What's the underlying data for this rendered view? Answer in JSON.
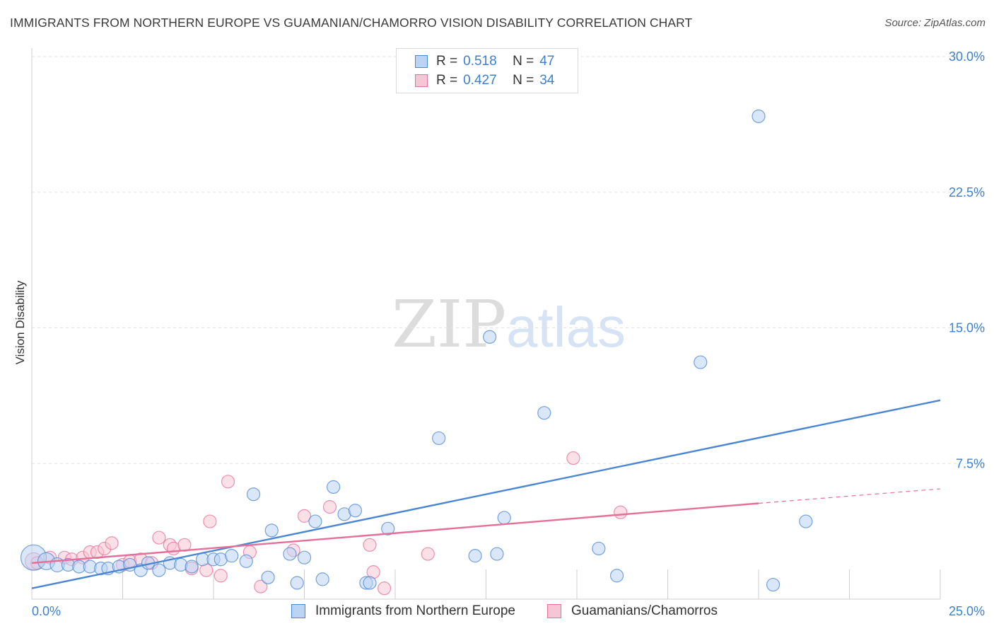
{
  "header": {
    "title": "IMMIGRANTS FROM NORTHERN EUROPE VS GUAMANIAN/CHAMORRO VISION DISABILITY CORRELATION CHART",
    "source": "Source: ZipAtlas.com"
  },
  "watermark": {
    "zip": "ZIP",
    "atlas": "atlas"
  },
  "colors": {
    "blue": "#4a86d4",
    "blue_fill": "#bcd4f3",
    "pink": "#e56f98",
    "pink_fill": "#f7c6d6",
    "tick": "#3d7fd0",
    "grid": "#e3e3e3"
  },
  "legend": {
    "rows": [
      {
        "r_label": "R =",
        "r_value": "0.518",
        "n_label": "N =",
        "n_value": "47"
      },
      {
        "r_label": "R =",
        "r_value": "0.427",
        "n_label": "N =",
        "n_value": "34"
      }
    ]
  },
  "bottom_legend": {
    "series1": "Immigrants from Northern Europe",
    "series2": "Guamanians/Chamorros"
  },
  "chart_data": {
    "type": "scatter",
    "title": "IMMIGRANTS FROM NORTHERN EUROPE VS GUAMANIAN/CHAMORRO VISION DISABILITY CORRELATION CHART",
    "xlabel": "",
    "ylabel": "Vision Disability",
    "xlim": [
      0,
      25
    ],
    "ylim": [
      0,
      30
    ],
    "x_tick_labels": [
      "0.0%",
      "25.0%"
    ],
    "y_ticks": [
      7.5,
      15.0,
      22.5,
      30.0
    ],
    "y_tick_labels": [
      "7.5%",
      "15.0%",
      "22.5%",
      "30.0%"
    ],
    "grid": true,
    "series": [
      {
        "name": "Immigrants from Northern Europe",
        "color": "#4a86d4",
        "R": 0.518,
        "N": 47,
        "trend": {
          "x": [
            0,
            25
          ],
          "y": [
            0.6,
            11.0
          ]
        },
        "points": [
          [
            0.05,
            2.3,
            18
          ],
          [
            0.4,
            2.1,
            12
          ],
          [
            0.7,
            1.9,
            10
          ],
          [
            1.0,
            1.9,
            9
          ],
          [
            1.3,
            1.8,
            9
          ],
          [
            1.6,
            1.8,
            9
          ],
          [
            1.9,
            1.7,
            9
          ],
          [
            2.1,
            1.7,
            9
          ],
          [
            2.4,
            1.8,
            9
          ],
          [
            2.7,
            1.9,
            9
          ],
          [
            3.0,
            1.6,
            9
          ],
          [
            3.2,
            2.0,
            9
          ],
          [
            3.5,
            1.6,
            9
          ],
          [
            3.8,
            2.0,
            9
          ],
          [
            4.1,
            1.9,
            9
          ],
          [
            4.4,
            1.8,
            9
          ],
          [
            4.7,
            2.2,
            9
          ],
          [
            5.0,
            2.2,
            9
          ],
          [
            5.2,
            2.2,
            9
          ],
          [
            5.5,
            2.4,
            9
          ],
          [
            5.9,
            2.1,
            9
          ],
          [
            6.1,
            5.8,
            9
          ],
          [
            6.5,
            1.2,
            9
          ],
          [
            6.6,
            3.8,
            9
          ],
          [
            7.1,
            2.5,
            9
          ],
          [
            7.3,
            0.9,
            9
          ],
          [
            7.5,
            2.3,
            9
          ],
          [
            7.8,
            4.3,
            9
          ],
          [
            8.0,
            1.1,
            9
          ],
          [
            8.3,
            6.2,
            9
          ],
          [
            8.6,
            4.7,
            9
          ],
          [
            8.9,
            4.9,
            9
          ],
          [
            9.2,
            0.9,
            9
          ],
          [
            9.3,
            0.9,
            9
          ],
          [
            9.8,
            3.9,
            9
          ],
          [
            11.2,
            8.9,
            9
          ],
          [
            12.2,
            2.4,
            9
          ],
          [
            12.6,
            14.5,
            9
          ],
          [
            12.8,
            2.5,
            9
          ],
          [
            13.0,
            4.5,
            9
          ],
          [
            14.1,
            10.3,
            9
          ],
          [
            15.6,
            2.8,
            9
          ],
          [
            16.1,
            1.3,
            9
          ],
          [
            18.4,
            13.1,
            9
          ],
          [
            20.0,
            26.7,
            9
          ],
          [
            20.4,
            0.8,
            9
          ],
          [
            21.3,
            4.3,
            9
          ]
        ]
      },
      {
        "name": "Guamanians/Chamorros",
        "color": "#e56f98",
        "R": 0.427,
        "N": 34,
        "trend": {
          "x": [
            0,
            20
          ],
          "y": [
            2.0,
            5.3
          ]
        },
        "trend_dashed": {
          "x": [
            20,
            25
          ],
          "y": [
            5.3,
            6.1
          ]
        },
        "points": [
          [
            0.05,
            2.1,
            12
          ],
          [
            0.5,
            2.3,
            9
          ],
          [
            0.9,
            2.3,
            9
          ],
          [
            1.1,
            2.2,
            9
          ],
          [
            1.4,
            2.3,
            9
          ],
          [
            1.6,
            2.6,
            9
          ],
          [
            1.8,
            2.6,
            9
          ],
          [
            2.0,
            2.8,
            9
          ],
          [
            2.2,
            3.1,
            9
          ],
          [
            2.5,
            1.9,
            9
          ],
          [
            2.7,
            2.1,
            9
          ],
          [
            3.0,
            2.2,
            9
          ],
          [
            3.3,
            2.0,
            9
          ],
          [
            3.5,
            3.4,
            9
          ],
          [
            3.8,
            3.0,
            9
          ],
          [
            3.9,
            2.8,
            9
          ],
          [
            4.2,
            3.0,
            9
          ],
          [
            4.4,
            1.7,
            9
          ],
          [
            4.8,
            1.6,
            9
          ],
          [
            4.9,
            4.3,
            9
          ],
          [
            5.2,
            1.3,
            9
          ],
          [
            5.4,
            6.5,
            9
          ],
          [
            6.0,
            2.6,
            9
          ],
          [
            6.3,
            0.7,
            9
          ],
          [
            7.2,
            2.7,
            9
          ],
          [
            7.5,
            4.6,
            9
          ],
          [
            8.2,
            5.1,
            9
          ],
          [
            9.3,
            3.0,
            9
          ],
          [
            9.4,
            1.5,
            9
          ],
          [
            9.7,
            0.6,
            9
          ],
          [
            10.9,
            2.5,
            9
          ],
          [
            14.9,
            7.8,
            9
          ],
          [
            16.2,
            4.8,
            9
          ],
          [
            0.15,
            2.0,
            9
          ]
        ]
      }
    ]
  }
}
